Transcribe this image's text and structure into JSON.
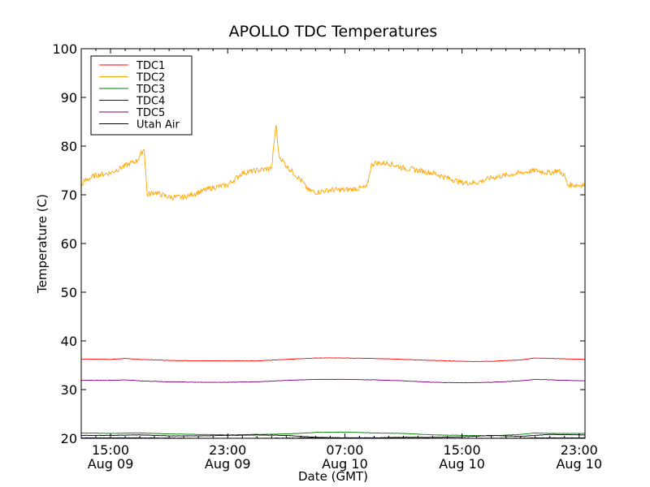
{
  "chart_data": {
    "type": "line",
    "title": "APOLLO TDC Temperatures",
    "xlabel": "Date (GMT)",
    "ylabel": "Temperature (C)",
    "ylim": [
      20,
      100
    ],
    "xlim_hours": [
      0,
      34.4
    ],
    "yticks": [
      "20",
      "30",
      "40",
      "50",
      "60",
      "70",
      "80",
      "90",
      "100"
    ],
    "xticks": [
      {
        "hour": 2.0,
        "time": "15:00",
        "date": "Aug 09"
      },
      {
        "hour": 10.0,
        "time": "23:00",
        "date": "Aug 09"
      },
      {
        "hour": 18.0,
        "time": "07:00",
        "date": "Aug 10"
      },
      {
        "hour": 26.0,
        "time": "15:00",
        "date": "Aug 10"
      },
      {
        "hour": 34.0,
        "time": "23:00",
        "date": "Aug 10"
      }
    ],
    "legend_position": "top-left",
    "series": [
      {
        "name": "TDC1",
        "color": "#ff0000",
        "x": [
          0,
          2,
          3,
          4,
          6,
          8,
          10,
          12,
          14,
          16,
          18,
          20,
          22,
          24,
          26,
          28,
          30,
          31,
          32,
          34.4
        ],
        "y": [
          36.3,
          36.2,
          36.4,
          36.2,
          36.0,
          35.9,
          35.9,
          35.9,
          36.2,
          36.5,
          36.5,
          36.4,
          36.2,
          36.0,
          35.8,
          35.8,
          36.1,
          36.5,
          36.4,
          36.2
        ]
      },
      {
        "name": "TDC2",
        "color": "#ffa500",
        "x": [
          0,
          0.3,
          1,
          2,
          3,
          3.8,
          4.3,
          4.5,
          5,
          6,
          7,
          8,
          9,
          10,
          11,
          12,
          13,
          13.3,
          13.5,
          14,
          15,
          15.5,
          16,
          17,
          18,
          19.5,
          19.8,
          20,
          21,
          22,
          23,
          24,
          25,
          26,
          27,
          28,
          29,
          30,
          31,
          32,
          32.5,
          33,
          33.2,
          34.4
        ],
        "y": [
          72,
          73,
          74,
          74.5,
          76,
          77,
          79.5,
          70,
          70.5,
          69.5,
          69.5,
          70.5,
          71.5,
          72,
          74.5,
          75,
          75.5,
          84.5,
          78,
          76,
          73,
          71,
          70.5,
          71,
          71,
          71.5,
          76,
          76.5,
          76.5,
          75.5,
          75,
          74.5,
          73.5,
          72.5,
          72.5,
          73.5,
          74,
          74.5,
          75,
          74.5,
          75,
          74,
          72,
          72
        ]
      },
      {
        "name": "TDC3",
        "color": "#008000",
        "x": [
          0,
          2,
          4,
          6,
          8,
          10,
          12,
          14,
          16,
          18,
          20,
          22,
          24,
          26,
          28,
          30,
          31,
          32,
          34.4
        ],
        "y": [
          21.1,
          21.0,
          21.1,
          20.9,
          20.8,
          20.7,
          20.8,
          20.9,
          21.2,
          21.3,
          21.1,
          21.0,
          20.7,
          20.6,
          20.5,
          20.8,
          21.1,
          21.0,
          21.0
        ]
      },
      {
        "name": "TDC4",
        "color": "#0000ff",
        "x": [
          0,
          4,
          8,
          12,
          16,
          20,
          24,
          28,
          32,
          34.4
        ],
        "y": [
          20.1,
          20.1,
          20.0,
          20.0,
          20.1,
          20.1,
          20.0,
          20.0,
          20.1,
          20.1
        ]
      },
      {
        "name": "TDC5",
        "color": "#800080",
        "x": [
          0,
          2,
          3,
          4,
          6,
          8,
          10,
          12,
          14,
          16,
          18,
          20,
          22,
          24,
          26,
          28,
          30,
          31,
          32,
          34.4
        ],
        "y": [
          31.9,
          31.9,
          32.0,
          31.8,
          31.6,
          31.5,
          31.5,
          31.6,
          31.9,
          32.1,
          32.1,
          32.0,
          31.8,
          31.5,
          31.4,
          31.5,
          31.8,
          32.1,
          32.0,
          31.8
        ]
      },
      {
        "name": "Utah Air",
        "color": "#000000",
        "x": [
          0,
          2,
          4,
          6,
          8,
          10,
          12,
          14,
          16,
          18,
          20,
          22,
          24,
          26,
          28,
          30,
          32,
          34.4
        ],
        "y": [
          20.6,
          20.6,
          20.7,
          20.5,
          20.5,
          20.6,
          20.7,
          20.6,
          20.2,
          20.1,
          20.1,
          20.2,
          20.2,
          20.3,
          20.6,
          20.4,
          20.8,
          20.7
        ]
      }
    ]
  }
}
